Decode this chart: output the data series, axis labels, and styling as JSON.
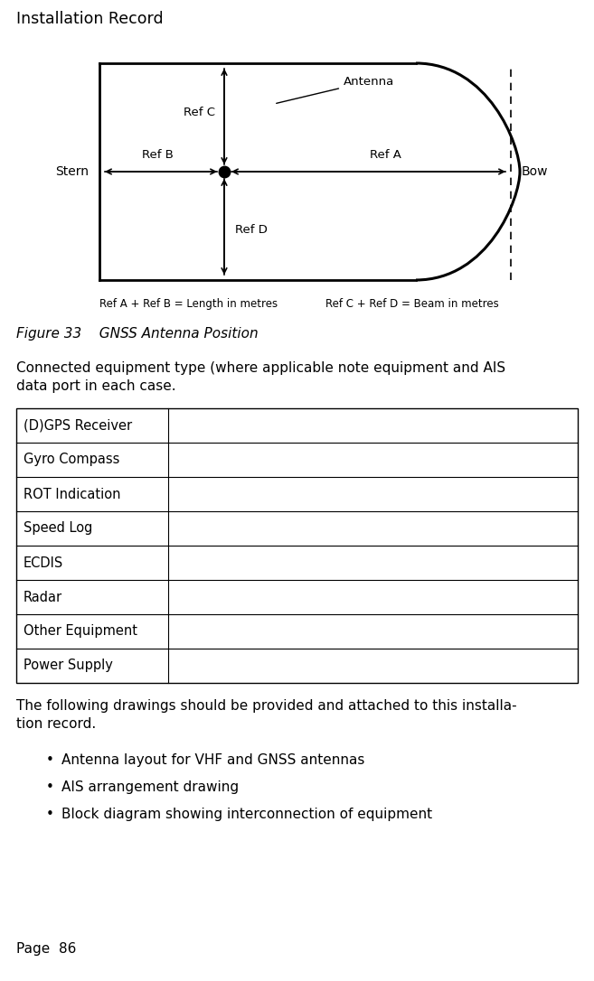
{
  "title": "Installation Record",
  "figure_caption": "Figure 33    GNSS Antenna Position",
  "connected_text": "Connected equipment type (where applicable note equipment and AIS\ndata port in each case.",
  "table_rows": [
    "(D)GPS Receiver",
    "Gyro Compass",
    "ROT Indication",
    "Speed Log",
    "ECDIS",
    "Radar",
    "Other Equipment",
    "Power Supply"
  ],
  "following_text": "The following drawings should be provided and attached to this installa-\ntion record.",
  "bullets": [
    "Antenna layout for VHF and GNSS antennas",
    "AIS arrangement drawing",
    "Block diagram showing interconnection of equipment"
  ],
  "page_text": "Page  86",
  "ref_a_text": "Ref A + Ref B = Length in metres",
  "ref_c_text": "Ref C + Ref D = Beam in metres",
  "stern_label": "Stern",
  "bow_label": "Bow",
  "ref_a_label": "Ref A",
  "ref_b_label": "Ref B",
  "ref_c_label": "Ref C",
  "ref_d_label": "Ref D",
  "antenna_label": "Antenna",
  "bg_color": "#ffffff",
  "text_color": "#000000",
  "line_color": "#000000"
}
